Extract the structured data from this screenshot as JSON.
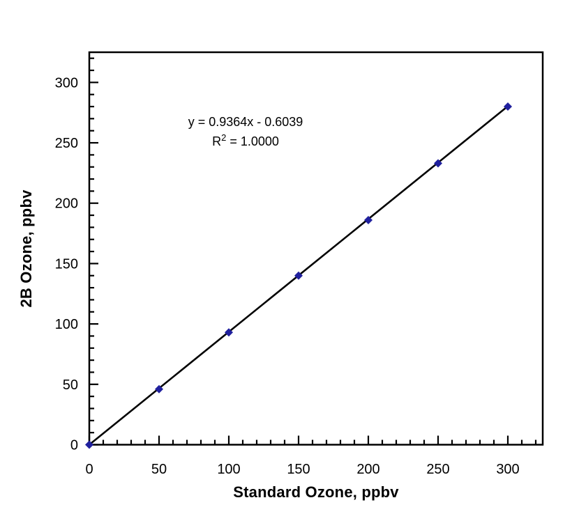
{
  "chart_data": {
    "type": "scatter",
    "title": "",
    "xlabel": "Standard Ozone, ppbv",
    "ylabel": "2B Ozone, ppbv",
    "x": [
      0,
      50,
      100,
      150,
      200,
      250,
      300
    ],
    "y": [
      0,
      46,
      93,
      140,
      186,
      233,
      280
    ],
    "trendline": {
      "slope": 0.9364,
      "intercept": -0.6039,
      "x_start": 0,
      "x_end": 300
    },
    "annotation": {
      "equation": "y = 0.9364x - 0.6039",
      "r2_base": "R",
      "r2_sup": "2",
      "r2_rest": " = 1.0000"
    },
    "xlim": [
      0,
      325
    ],
    "ylim": [
      0,
      325
    ],
    "x_major_ticks": [
      0,
      50,
      100,
      150,
      200,
      250,
      300
    ],
    "y_major_ticks": [
      0,
      50,
      100,
      150,
      200,
      250,
      300
    ],
    "minor_tick_step": 10,
    "minor_tick_max": 320,
    "grid": false,
    "legend_position": "none",
    "marker_shape": "diamond",
    "colors": {
      "marker": "#20209e",
      "trendline": "#000000",
      "axis": "#000000",
      "text": "#000000",
      "background": "#ffffff"
    }
  }
}
